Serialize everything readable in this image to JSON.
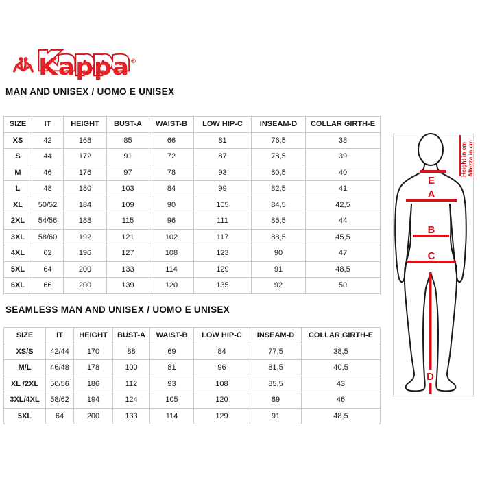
{
  "logo": {
    "wordmark": "Kappa",
    "registered": "®",
    "brand_color": "#e32126"
  },
  "sections": [
    {
      "heading": "MAN AND UNISEX / UOMO E UNISEX",
      "table": {
        "columns": [
          "SIZE",
          "IT",
          "HEIGHT",
          "BUST-A",
          "WAIST-B",
          "LOW HIP-C",
          "INSEAM-D",
          "COLLAR GIRTH-E"
        ],
        "rows": [
          [
            "XS",
            "42",
            "168",
            "85",
            "66",
            "81",
            "76,5",
            "38"
          ],
          [
            "S",
            "44",
            "172",
            "91",
            "72",
            "87",
            "78,5",
            "39"
          ],
          [
            "M",
            "46",
            "176",
            "97",
            "78",
            "93",
            "80,5",
            "40"
          ],
          [
            "L",
            "48",
            "180",
            "103",
            "84",
            "99",
            "82,5",
            "41"
          ],
          [
            "XL",
            "50/52",
            "184",
            "109",
            "90",
            "105",
            "84,5",
            "42,5"
          ],
          [
            "2XL",
            "54/56",
            "188",
            "115",
            "96",
            "111",
            "86,5",
            "44"
          ],
          [
            "3XL",
            "58/60",
            "192",
            "121",
            "102",
            "117",
            "88,5",
            "45,5"
          ],
          [
            "4XL",
            "62",
            "196",
            "127",
            "108",
            "123",
            "90",
            "47"
          ],
          [
            "5XL",
            "64",
            "200",
            "133",
            "114",
            "129",
            "91",
            "48,5"
          ],
          [
            "6XL",
            "66",
            "200",
            "139",
            "120",
            "135",
            "92",
            "50"
          ]
        ]
      }
    },
    {
      "heading": "SEAMLESS MAN AND UNISEX / UOMO E UNISEX",
      "table": {
        "columns": [
          "SIZE",
          "IT",
          "HEIGHT",
          "BUST-A",
          "WAIST-B",
          "LOW HIP-C",
          "INSEAM-D",
          "COLLAR GIRTH-E"
        ],
        "rows": [
          [
            "XS/S",
            "42/44",
            "170",
            "88",
            "69",
            "84",
            "77,5",
            "38,5"
          ],
          [
            "M/L",
            "46/48",
            "178",
            "100",
            "81",
            "96",
            "81,5",
            "40,5"
          ],
          [
            "XL /2XL",
            "50/56",
            "186",
            "112",
            "93",
            "108",
            "85,5",
            "43"
          ],
          [
            "3XL/4XL",
            "58/62",
            "194",
            "124",
            "105",
            "120",
            "89",
            "46"
          ],
          [
            "5XL",
            "64",
            "200",
            "133",
            "114",
            "129",
            "91",
            "48,5"
          ]
        ]
      }
    }
  ],
  "diagram": {
    "labels": {
      "collar": "E",
      "bust": "A",
      "waist": "B",
      "low_hip": "C",
      "inseam": "D"
    },
    "height_note_en": "Height in cm",
    "height_note_it": "Altezza in cm",
    "accent_color": "#d8121a"
  }
}
